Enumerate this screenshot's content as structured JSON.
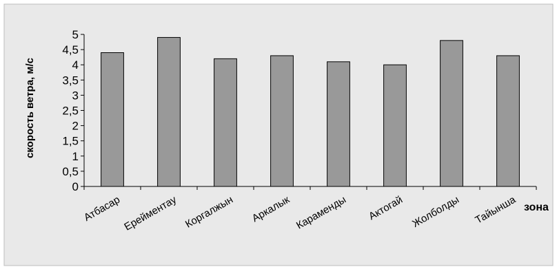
{
  "chart_data": {
    "type": "bar",
    "title": "",
    "xlabel": "зона",
    "ylabel": "скорость ветра, м/с",
    "categories": [
      "Атбасар",
      "Ерейментау",
      "Коргалжын",
      "Аркалык",
      "Караменды",
      "Актогай",
      "Жолболды",
      "Тайынша"
    ],
    "values": [
      4.4,
      4.9,
      4.2,
      4.3,
      4.1,
      4.0,
      4.8,
      4.3
    ],
    "ylim": [
      0,
      5
    ],
    "yticks": [
      "0",
      "0,5",
      "1",
      "1,5",
      "2",
      "2,5",
      "3",
      "3,5",
      "4",
      "4,5",
      "5"
    ],
    "grid": false,
    "legend": "none",
    "colors": {
      "bar_fill": "#999999",
      "bar_stroke": "#000000",
      "background": "#e9e9e9",
      "axis": "#000000"
    }
  }
}
